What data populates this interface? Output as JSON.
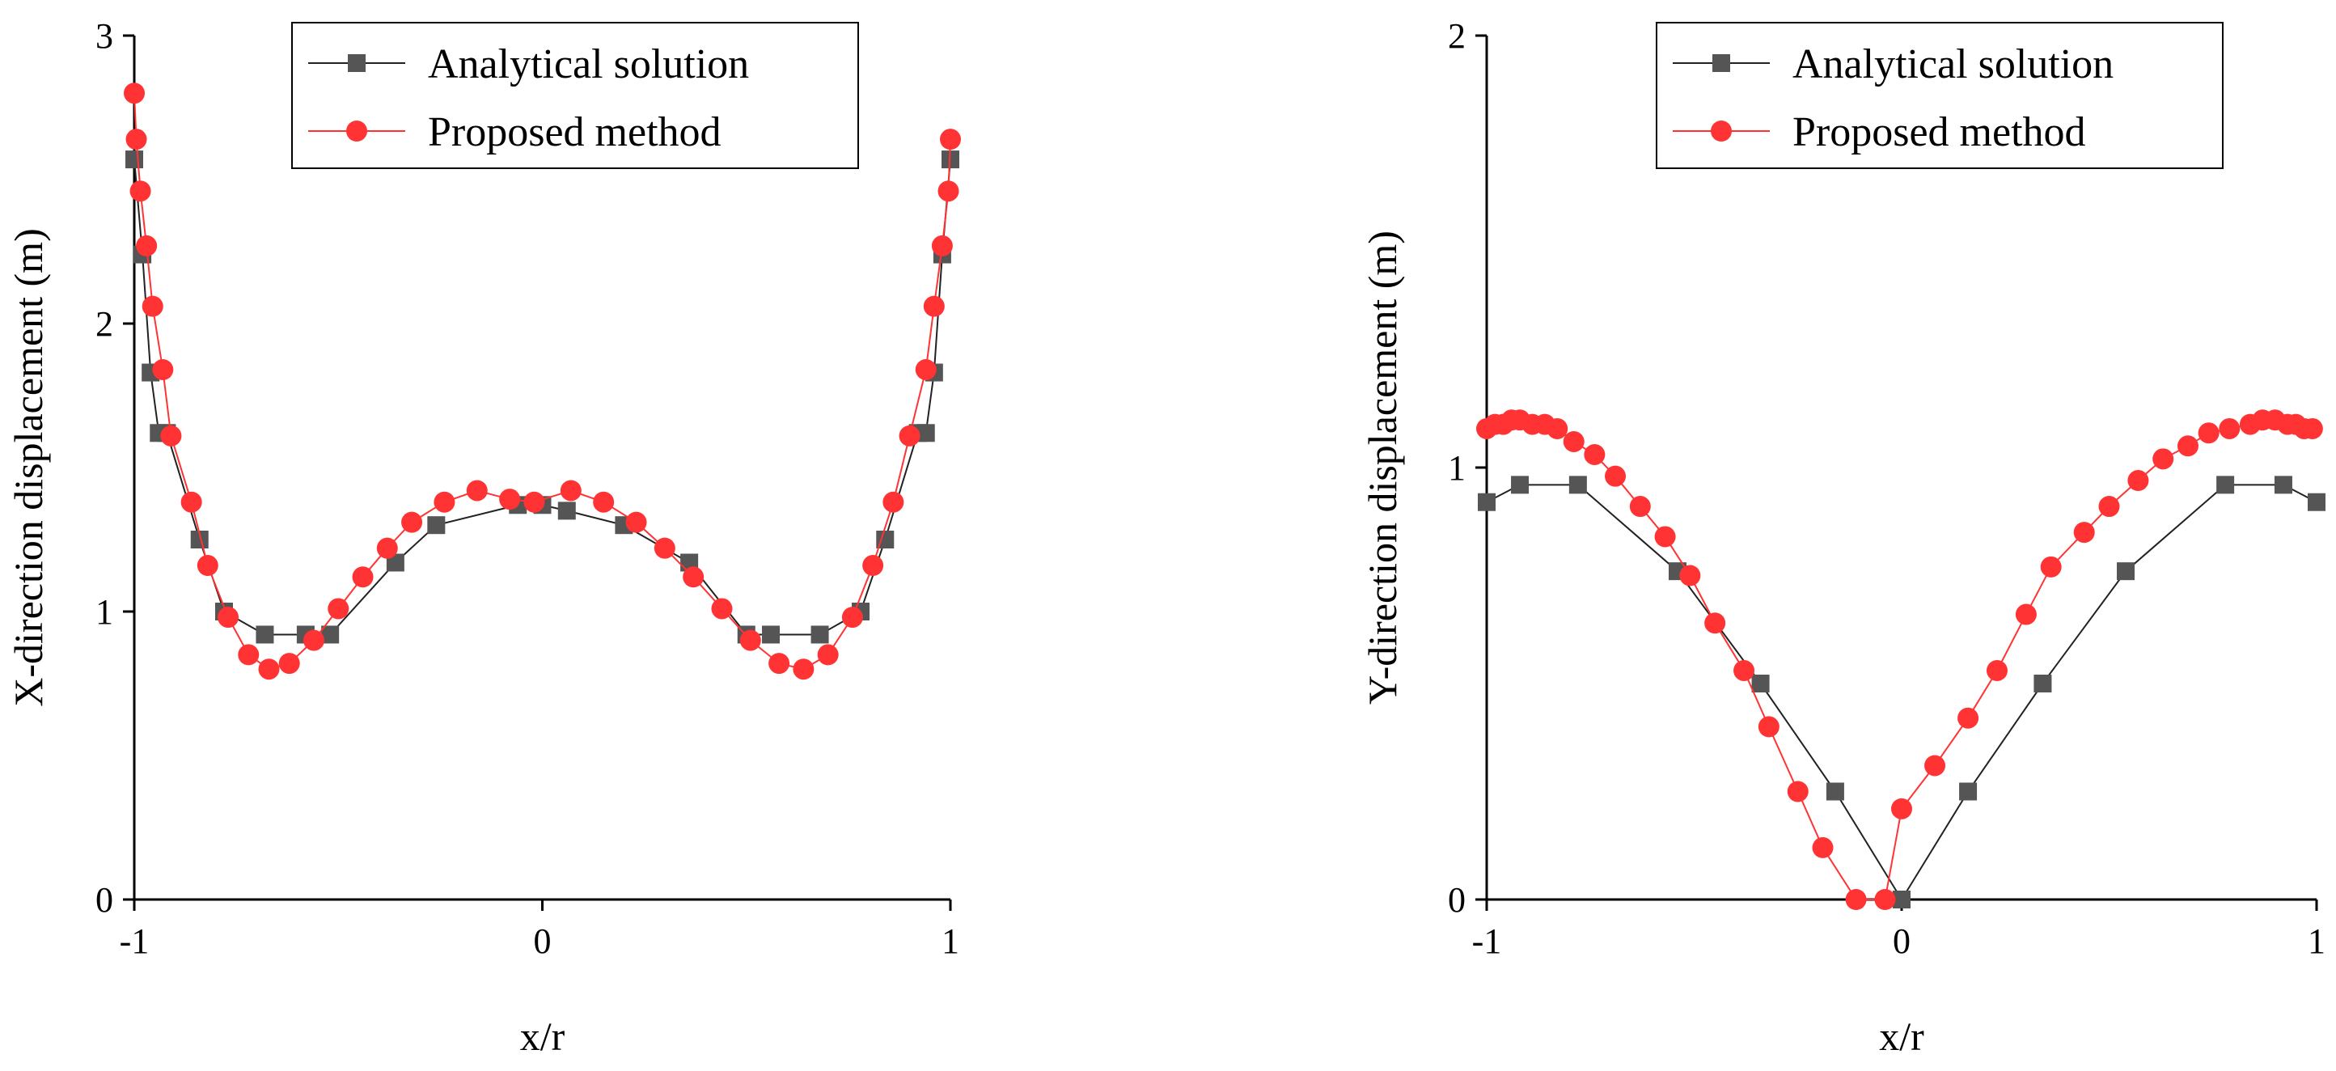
{
  "chart_data": [
    {
      "type": "line",
      "xlabel": "x/r",
      "ylabel": "X-direction displacement (m)",
      "xlim": [
        -1,
        1
      ],
      "ylim": [
        0,
        3
      ],
      "xticks": [
        -1,
        0,
        1
      ],
      "xtick_labels": [
        "-1",
        "0",
        "1"
      ],
      "yticks": [
        0,
        1,
        2,
        3
      ],
      "ytick_labels": [
        "0",
        "1",
        "2",
        "3"
      ],
      "legend": {
        "position": "top-right"
      },
      "series": [
        {
          "name": "Analytical solution",
          "color": "#555555",
          "marker": "square",
          "x": [
            -1.0,
            -0.98,
            -0.96,
            -0.94,
            -0.92,
            -0.84,
            -0.78,
            -0.68,
            -0.58,
            -0.52,
            -0.36,
            -0.26,
            -0.06,
            0.0,
            0.06,
            0.2,
            0.36,
            0.5,
            0.56,
            0.68,
            0.78,
            0.84,
            0.92,
            0.94,
            0.96,
            0.98,
            1.0
          ],
          "y": [
            2.57,
            2.24,
            1.83,
            1.62,
            1.62,
            1.25,
            1.0,
            0.92,
            0.92,
            0.92,
            1.17,
            1.3,
            1.37,
            1.37,
            1.35,
            1.3,
            1.17,
            0.92,
            0.92,
            0.92,
            1.0,
            1.25,
            1.62,
            1.62,
            1.83,
            2.24,
            2.57
          ]
        },
        {
          "name": "Proposed method",
          "color": "#ff3333",
          "marker": "circle",
          "x": [
            -1.0,
            -0.995,
            -0.985,
            -0.97,
            -0.955,
            -0.93,
            -0.91,
            -0.86,
            -0.82,
            -0.77,
            -0.72,
            -0.67,
            -0.62,
            -0.56,
            -0.5,
            -0.44,
            -0.38,
            -0.32,
            -0.24,
            -0.16,
            -0.08,
            -0.02,
            0.07,
            0.15,
            0.23,
            0.3,
            0.37,
            0.44,
            0.51,
            0.58,
            0.64,
            0.7,
            0.76,
            0.81,
            0.86,
            0.9,
            0.94,
            0.96,
            0.98,
            0.995,
            1.0
          ],
          "y": [
            2.8,
            2.64,
            2.46,
            2.27,
            2.06,
            1.84,
            1.61,
            1.38,
            1.16,
            0.98,
            0.85,
            0.8,
            0.82,
            0.9,
            1.01,
            1.12,
            1.22,
            1.31,
            1.38,
            1.42,
            1.39,
            1.38,
            1.42,
            1.38,
            1.31,
            1.22,
            1.12,
            1.01,
            0.9,
            0.82,
            0.8,
            0.85,
            0.98,
            1.16,
            1.38,
            1.61,
            1.84,
            2.06,
            2.27,
            2.46,
            2.64
          ]
        }
      ]
    },
    {
      "type": "line",
      "xlabel": "x/r",
      "ylabel": "Y-direction displacement (m)",
      "xlim": [
        -1,
        1
      ],
      "ylim": [
        0,
        2
      ],
      "xticks": [
        -1,
        0,
        1
      ],
      "xtick_labels": [
        "-1",
        "0",
        "1"
      ],
      "yticks": [
        0,
        1,
        2
      ],
      "ytick_labels": [
        "0",
        "1",
        "2"
      ],
      "legend": {
        "position": "top-right"
      },
      "series": [
        {
          "name": "Analytical solution",
          "color": "#555555",
          "marker": "square",
          "x": [
            -1.0,
            -0.92,
            -0.78,
            -0.54,
            -0.34,
            -0.16,
            0.0,
            0.16,
            0.34,
            0.54,
            0.78,
            0.92,
            1.0
          ],
          "y": [
            0.92,
            0.96,
            0.96,
            0.76,
            0.5,
            0.25,
            0.0,
            0.25,
            0.5,
            0.76,
            0.96,
            0.96,
            0.92
          ],
          "extra_marker": {
            "x": 0.0,
            "y": 0.0
          }
        },
        {
          "name": "Proposed method",
          "color": "#ff3333",
          "marker": "circle",
          "x": [
            -1.0,
            -0.98,
            -0.96,
            -0.94,
            -0.92,
            -0.89,
            -0.86,
            -0.83,
            -0.79,
            -0.74,
            -0.69,
            -0.63,
            -0.57,
            -0.51,
            -0.45,
            -0.38,
            -0.32,
            -0.25,
            -0.19,
            -0.11,
            -0.04,
            0.0,
            0.08,
            0.16,
            0.23,
            0.3,
            0.36,
            0.44,
            0.5,
            0.57,
            0.63,
            0.69,
            0.74,
            0.79,
            0.84,
            0.87,
            0.9,
            0.93,
            0.95,
            0.97,
            0.99
          ],
          "y": [
            1.09,
            1.1,
            1.1,
            1.11,
            1.11,
            1.1,
            1.1,
            1.09,
            1.06,
            1.03,
            0.98,
            0.91,
            0.84,
            0.75,
            0.64,
            0.53,
            0.4,
            0.25,
            0.12,
            0.0,
            0.0,
            0.21,
            0.31,
            0.42,
            0.53,
            0.66,
            0.77,
            0.85,
            0.91,
            0.97,
            1.02,
            1.05,
            1.08,
            1.09,
            1.1,
            1.11,
            1.11,
            1.1,
            1.1,
            1.09,
            1.09
          ]
        }
      ]
    }
  ]
}
